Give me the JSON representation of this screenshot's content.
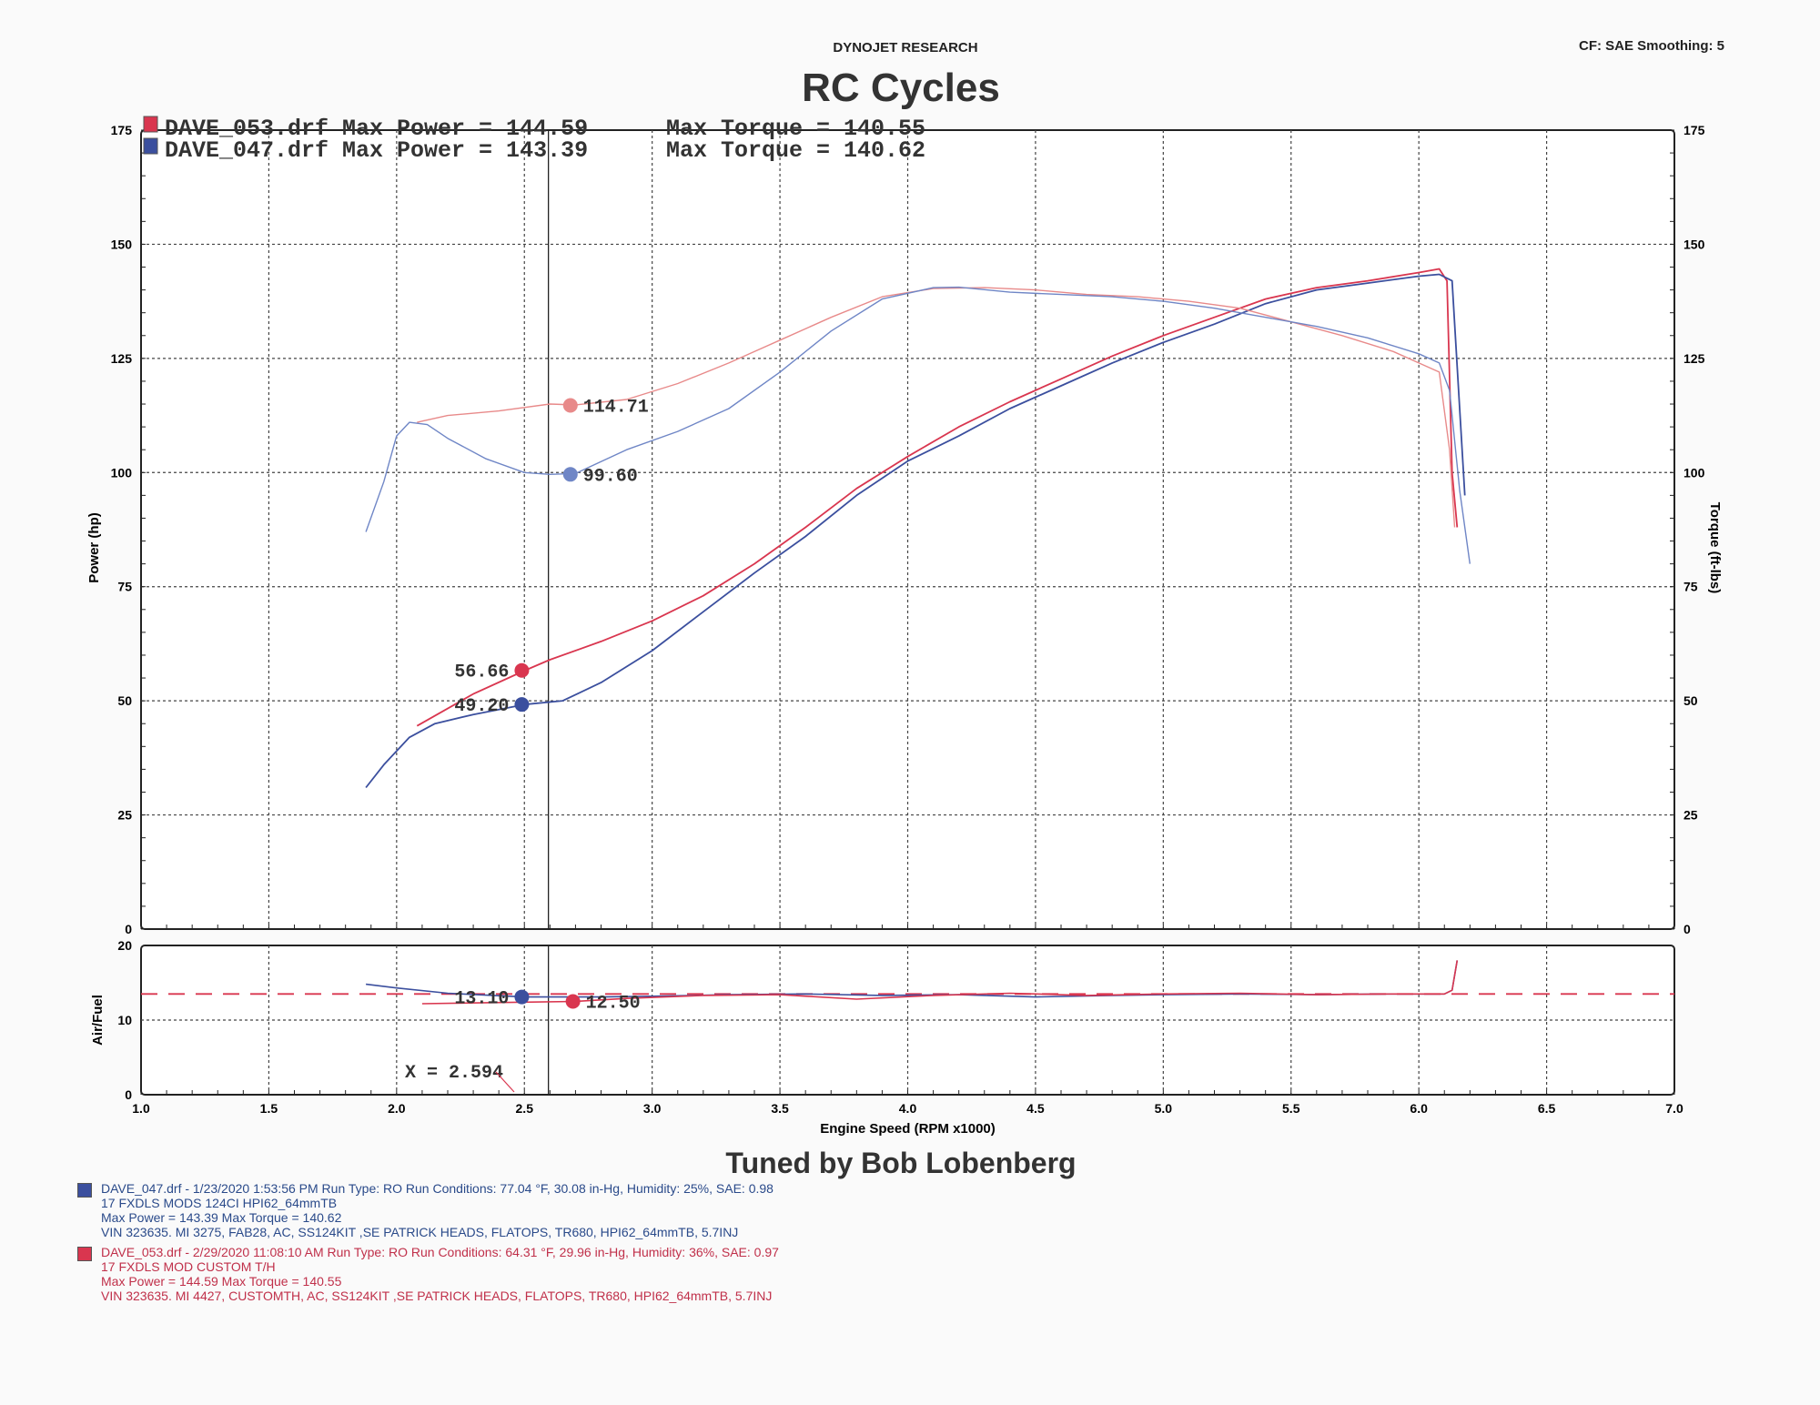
{
  "header": {
    "research": "DYNOJET RESEARCH",
    "cf_smoothing": "CF: SAE  Smoothing: 5",
    "title": "RC Cycles"
  },
  "footer": {
    "tuned_by": "Tuned by Bob Lobenberg"
  },
  "colors": {
    "red": "#d9364f",
    "blue": "#3b4f9e",
    "torque_red": "#e88a8a",
    "torque_blue": "#6f86c6",
    "grid": "#444444"
  },
  "runs": [
    {
      "swatch_color": "#3b4f9e",
      "lines": [
        "DAVE_047.drf - 1/23/2020 1:53:56 PM  Run Type: RO  Run Conditions: 77.04 °F, 30.08 in-Hg,  Humidity:  25%, SAE: 0.98",
        "17 FXDLS  MODS 124CI HPI62_64mmTB",
        "Max Power = 143.39  Max Torque = 140.62",
        "VIN 323635. MI 3275, FAB28, AC, SS124KIT ,SE PATRICK HEADS, FLATOPS, TR680, HPI62_64mmTB, 5.7INJ"
      ]
    },
    {
      "swatch_color": "#d9364f",
      "lines": [
        "DAVE_053.drf - 2/29/2020 11:08:10 AM  Run Type: RO  Run Conditions: 64.31 °F, 29.96 in-Hg,  Humidity:  36%, SAE: 0.97",
        "17 FXDLS  MOD CUSTOM T/H",
        "Max Power = 144.59  Max Torque = 140.55",
        "VIN 323635. MI 4427, CUSTOMTH, AC, SS124KIT ,SE PATRICK HEADS, FLATOPS, TR680, HPI62_64mmTB, 5.7INJ"
      ]
    }
  ],
  "chart_data": [
    {
      "type": "line",
      "legend": [
        {
          "file": "DAVE_053.drf",
          "text": "DAVE_053.drf Max Power = 144.59",
          "torque_text": "Max Torque = 140.55",
          "color": "#d9364f"
        },
        {
          "file": "DAVE_047.drf",
          "text": "DAVE_047.drf Max Power = 143.39",
          "torque_text": "Max Torque = 140.62",
          "color": "#3b4f9e"
        }
      ],
      "ylabel": "Power (hp)",
      "y2label": "Torque (ft-lbs)",
      "xlim": [
        1.0,
        7.0
      ],
      "ylim": [
        0,
        175
      ],
      "yticks": [
        "0",
        "25",
        "50",
        "75",
        "100",
        "125",
        "150",
        "175"
      ],
      "grid": true,
      "cursor_x": 2.594,
      "series": [
        {
          "name": "DAVE_053.drf",
          "kind": "power",
          "color": "#d9364f",
          "x": [
            2.08,
            2.3,
            2.5,
            2.6,
            2.8,
            3.0,
            3.2,
            3.4,
            3.6,
            3.8,
            4.0,
            4.2,
            4.4,
            4.6,
            4.8,
            5.0,
            5.2,
            5.4,
            5.6,
            5.8,
            6.0,
            6.08,
            6.11,
            6.13,
            6.15
          ],
          "y": [
            44.5,
            51.5,
            56.6,
            59,
            63,
            67.5,
            73,
            80,
            88,
            96.5,
            103.5,
            110,
            115.5,
            120.5,
            125.5,
            130,
            134,
            138,
            140.5,
            142,
            143.8,
            144.6,
            142,
            100,
            88
          ]
        },
        {
          "name": "DAVE_047.drf",
          "kind": "power",
          "color": "#3b4f9e",
          "x": [
            1.88,
            1.95,
            2.05,
            2.15,
            2.3,
            2.5,
            2.65,
            2.8,
            3.0,
            3.2,
            3.4,
            3.6,
            3.8,
            4.0,
            4.2,
            4.4,
            4.6,
            4.8,
            5.0,
            5.2,
            5.4,
            5.6,
            5.8,
            6.0,
            6.08,
            6.13,
            6.18
          ],
          "y": [
            31,
            36,
            42,
            45,
            47,
            49.2,
            50,
            54,
            61,
            69.5,
            78,
            86,
            95,
            102.5,
            108,
            114,
            119,
            124,
            128.5,
            132.5,
            137,
            140,
            141.5,
            143,
            143.4,
            142,
            95
          ]
        },
        {
          "name": "DAVE_053.drf",
          "kind": "torque",
          "color": "#e88a8a",
          "x": [
            2.08,
            2.2,
            2.4,
            2.6,
            2.7,
            2.9,
            3.1,
            3.3,
            3.5,
            3.7,
            3.9,
            4.1,
            4.3,
            4.5,
            4.7,
            4.9,
            5.1,
            5.3,
            5.5,
            5.7,
            5.9,
            6.0,
            6.08,
            6.12,
            6.14
          ],
          "y": [
            111,
            112.5,
            113.5,
            115,
            114.8,
            116,
            119.5,
            124,
            129,
            134,
            138.5,
            140.3,
            140.5,
            140,
            139,
            138.5,
            137.5,
            136,
            133,
            130,
            126.5,
            124,
            122,
            105,
            88
          ]
        },
        {
          "name": "DAVE_047.drf",
          "kind": "torque",
          "color": "#6f86c6",
          "x": [
            1.88,
            1.95,
            2.0,
            2.05,
            2.12,
            2.2,
            2.35,
            2.5,
            2.6,
            2.7,
            2.9,
            3.1,
            3.3,
            3.5,
            3.7,
            3.9,
            4.1,
            4.2,
            4.4,
            4.6,
            4.8,
            5.0,
            5.2,
            5.4,
            5.6,
            5.8,
            6.0,
            6.08,
            6.12,
            6.16,
            6.2
          ],
          "y": [
            87,
            98,
            108,
            111,
            110.5,
            107.5,
            103,
            100,
            99.6,
            99.8,
            105,
            109,
            114,
            122,
            131,
            138,
            140.5,
            140.6,
            139.5,
            139,
            138.5,
            137.5,
            136,
            134,
            132,
            129.5,
            126,
            124,
            118,
            96,
            80
          ]
        }
      ],
      "markers": [
        {
          "series": "DAVE_053.drf",
          "kind": "torque",
          "x": 2.68,
          "y": 114.71,
          "label": "114.71",
          "color": "#e88a8a"
        },
        {
          "series": "DAVE_047.drf",
          "kind": "torque",
          "x": 2.68,
          "y": 99.6,
          "label": "99.60",
          "color": "#6f86c6"
        },
        {
          "series": "DAVE_053.drf",
          "kind": "power",
          "x": 2.49,
          "y": 56.66,
          "label": "56.66",
          "color": "#d9364f"
        },
        {
          "series": "DAVE_047.drf",
          "kind": "power",
          "x": 2.49,
          "y": 49.2,
          "label": "49.20",
          "color": "#3b4f9e"
        }
      ]
    },
    {
      "type": "line",
      "ylabel": "Air/Fuel",
      "xlabel": "Engine Speed (RPM x1000)",
      "xlim": [
        1.0,
        7.0
      ],
      "ylim": [
        0,
        20
      ],
      "xticks": [
        "1.0",
        "1.5",
        "2.0",
        "2.5",
        "3.0",
        "3.5",
        "4.0",
        "4.5",
        "5.0",
        "5.5",
        "6.0",
        "6.5",
        "7.0"
      ],
      "yticks": [
        "0",
        "10",
        "20"
      ],
      "reference_line": 13.5,
      "cursor_label": "X = 2.594",
      "series": [
        {
          "name": "DAVE_047.drf",
          "color": "#3b4f9e",
          "x": [
            1.88,
            2.0,
            2.2,
            2.5,
            2.8,
            3.0,
            3.3,
            3.6,
            3.9,
            4.2,
            4.5,
            4.8,
            5.0,
            5.3,
            5.6,
            5.9,
            6.1,
            6.13,
            6.15
          ],
          "y": [
            14.8,
            14.3,
            13.6,
            13.1,
            13.1,
            13.2,
            13.4,
            13.5,
            13.3,
            13.4,
            13.1,
            13.3,
            13.4,
            13.5,
            13.4,
            13.5,
            13.5,
            14.0,
            18.0
          ]
        },
        {
          "name": "DAVE_053.drf",
          "color": "#d9364f",
          "x": [
            2.1,
            2.5,
            2.7,
            2.9,
            3.2,
            3.5,
            3.8,
            4.1,
            4.4,
            4.7,
            5.0,
            5.3,
            5.6,
            5.9,
            6.1,
            6.13,
            6.15
          ],
          "y": [
            12.2,
            12.4,
            12.5,
            12.9,
            13.3,
            13.4,
            12.8,
            13.3,
            13.6,
            13.3,
            13.5,
            13.6,
            13.4,
            13.5,
            13.5,
            14.0,
            18.0
          ]
        }
      ],
      "markers": [
        {
          "series": "DAVE_047.drf",
          "x": 2.49,
          "y": 13.1,
          "label": "13.10",
          "color": "#3b4f9e"
        },
        {
          "series": "DAVE_053.drf",
          "x": 2.69,
          "y": 12.5,
          "label": "12.50",
          "color": "#d9364f"
        }
      ]
    }
  ]
}
